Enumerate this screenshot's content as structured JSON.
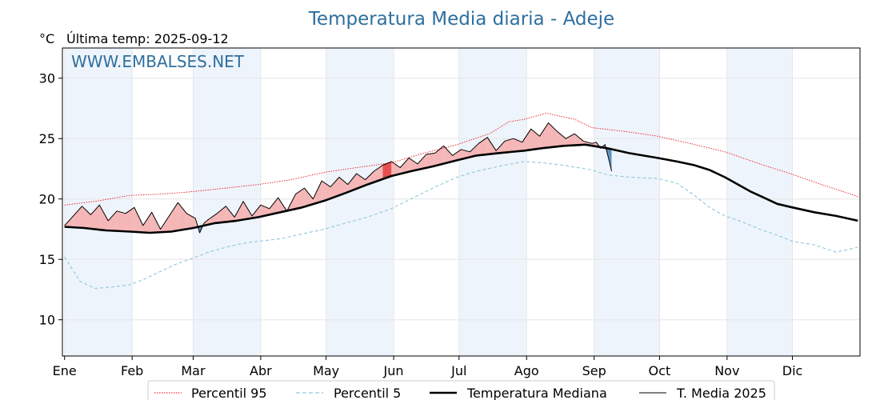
{
  "chart_data": {
    "type": "line",
    "title": "Temperatura Media diaria - Adeje",
    "unit_label": "°C",
    "subtitle": "Última temp: 2025-09-12",
    "watermark": "WWW.EMBALSES.NET",
    "ylim": [
      7,
      32.5
    ],
    "xlim": [
      0,
      366
    ],
    "yticks": [
      10,
      15,
      20,
      25,
      30
    ],
    "month_labels": [
      "Ene",
      "Feb",
      "Mar",
      "Abr",
      "May",
      "Jun",
      "Jul",
      "Ago",
      "Sep",
      "Oct",
      "Nov",
      "Dic"
    ],
    "month_starts": [
      1,
      32,
      60,
      91,
      121,
      152,
      182,
      213,
      244,
      274,
      305,
      335
    ],
    "grid": true,
    "legend_position": "bottom",
    "colors": {
      "p95": "#e8000b",
      "p5": "#8fc6dc",
      "median": "#000000",
      "t2025": "#000000",
      "above_fill": "#f4b6b6",
      "above_strong": "#e85050",
      "below_fill": "#5d8fc0",
      "band": "#eef4fb",
      "title": "#2e6f9e"
    },
    "series": [
      {
        "name": "Percentil 95",
        "style": "dotted-red",
        "x": [
          1,
          15,
          31,
          45,
          59,
          75,
          90,
          105,
          120,
          135,
          151,
          166,
          181,
          196,
          205,
          212,
          222,
          235,
          243,
          258,
          273,
          288,
          304,
          320,
          334,
          350,
          365
        ],
        "y": [
          19.5,
          19.8,
          20.3,
          20.4,
          20.6,
          20.9,
          21.2,
          21.6,
          22.2,
          22.6,
          23.0,
          23.8,
          24.5,
          25.4,
          26.4,
          26.6,
          27.1,
          26.6,
          25.9,
          25.6,
          25.2,
          24.6,
          23.9,
          22.9,
          22.1,
          21.1,
          20.2
        ]
      },
      {
        "name": "Percentil 5",
        "style": "dashed-lightblue",
        "x": [
          1,
          8,
          15,
          22,
          31,
          38,
          45,
          52,
          60,
          67,
          75,
          82,
          90,
          100,
          110,
          120,
          130,
          140,
          151,
          160,
          170,
          181,
          190,
          200,
          212,
          220,
          230,
          243,
          250,
          260,
          273,
          282,
          290,
          297,
          304,
          312,
          320,
          328,
          335,
          345,
          355,
          365
        ],
        "y": [
          15.2,
          13.2,
          12.6,
          12.7,
          12.9,
          13.4,
          14.0,
          14.6,
          15.1,
          15.6,
          16.0,
          16.3,
          16.5,
          16.7,
          17.1,
          17.5,
          18.0,
          18.5,
          19.2,
          20.0,
          20.9,
          21.8,
          22.3,
          22.7,
          23.1,
          23.0,
          22.8,
          22.4,
          22.0,
          21.8,
          21.7,
          21.3,
          20.3,
          19.3,
          18.6,
          18.1,
          17.5,
          17.0,
          16.5,
          16.2,
          15.6,
          16.0
        ]
      },
      {
        "name": "Temperatura Mediana",
        "style": "thick-black",
        "x": [
          1,
          10,
          20,
          31,
          40,
          50,
          60,
          70,
          80,
          90,
          100,
          110,
          121,
          130,
          140,
          151,
          160,
          170,
          181,
          190,
          200,
          212,
          220,
          230,
          240,
          250,
          260,
          273,
          282,
          290,
          297,
          304,
          310,
          316,
          322,
          328,
          335,
          345,
          355,
          365
        ],
        "y": [
          17.7,
          17.6,
          17.4,
          17.3,
          17.2,
          17.3,
          17.6,
          18.0,
          18.2,
          18.5,
          18.9,
          19.3,
          19.9,
          20.5,
          21.2,
          21.9,
          22.3,
          22.7,
          23.2,
          23.6,
          23.8,
          24.0,
          24.2,
          24.4,
          24.5,
          24.2,
          23.8,
          23.4,
          23.1,
          22.8,
          22.4,
          21.8,
          21.2,
          20.6,
          20.1,
          19.6,
          19.3,
          18.9,
          18.6,
          18.2
        ]
      },
      {
        "name": "T. Media 2025",
        "style": "thin-black",
        "x": [
          1,
          5,
          9,
          13,
          17,
          21,
          25,
          29,
          33,
          37,
          41,
          45,
          49,
          53,
          57,
          61,
          63,
          65,
          67,
          71,
          75,
          79,
          83,
          87,
          91,
          95,
          99,
          103,
          107,
          111,
          115,
          119,
          123,
          127,
          131,
          135,
          139,
          143,
          147,
          151,
          155,
          159,
          163,
          167,
          171,
          175,
          179,
          183,
          187,
          191,
          195,
          199,
          203,
          207,
          211,
          215,
          219,
          223,
          227,
          231,
          235,
          239,
          243,
          245,
          247,
          249,
          251,
          252
        ],
        "y": [
          17.8,
          18.6,
          19.4,
          18.7,
          19.5,
          18.2,
          19.0,
          18.8,
          19.3,
          17.8,
          18.9,
          17.5,
          18.6,
          19.7,
          18.8,
          18.4,
          17.2,
          18.0,
          18.3,
          18.8,
          19.4,
          18.5,
          19.8,
          18.6,
          19.5,
          19.2,
          20.1,
          19.0,
          20.4,
          20.9,
          20.0,
          21.5,
          21.0,
          21.8,
          21.2,
          22.1,
          21.6,
          22.3,
          22.8,
          23.1,
          22.6,
          23.4,
          22.9,
          23.7,
          23.8,
          24.4,
          23.6,
          24.1,
          23.9,
          24.6,
          25.1,
          24.0,
          24.8,
          25.0,
          24.7,
          25.8,
          25.2,
          26.3,
          25.6,
          25.0,
          25.4,
          24.8,
          24.6,
          24.7,
          24.2,
          24.5,
          23.1,
          22.3
        ]
      }
    ]
  },
  "legend": {
    "items": [
      "Percentil 95",
      "Percentil 5",
      "Temperatura Mediana",
      "T. Media 2025"
    ]
  }
}
